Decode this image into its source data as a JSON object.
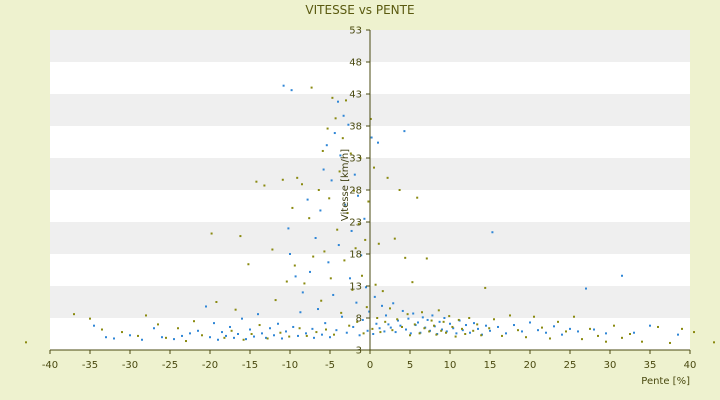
{
  "chart_data": {
    "type": "scatter",
    "title": "VITESSE vs PENTE",
    "xlabel": "Pente [%]",
    "ylabel": "Vitesse [km/h]",
    "xlim": [
      -40,
      40
    ],
    "ylim": [
      3,
      53
    ],
    "x_ticks": [
      -40,
      -35,
      -30,
      -25,
      -20,
      -15,
      -10,
      -5,
      0,
      5,
      10,
      15,
      20,
      25,
      30,
      35,
      40
    ],
    "y_ticks": [
      3,
      8,
      13,
      18,
      23,
      28,
      33,
      38,
      43,
      48,
      53
    ],
    "grid": "horizontal alternating bands",
    "colors": {
      "background": "#eef2cf",
      "plot_area": "#ffffff",
      "band": "#efefef",
      "series_blue": "#2f86d6",
      "series_olive": "#8a8a10",
      "text": "#4a4a10"
    },
    "series": [
      {
        "color_name": "blue",
        "points": [
          [
            -34.5,
            6.8
          ],
          [
            -33.0,
            5.0
          ],
          [
            -32.0,
            4.8
          ],
          [
            -30.0,
            5.3
          ],
          [
            -28.5,
            4.6
          ],
          [
            -27.0,
            6.4
          ],
          [
            -26.0,
            5.0
          ],
          [
            -24.5,
            4.7
          ],
          [
            -23.5,
            5.2
          ],
          [
            -22.5,
            5.6
          ],
          [
            -21.5,
            6.0
          ],
          [
            -20.5,
            9.8
          ],
          [
            -20.0,
            5.0
          ],
          [
            -19.5,
            7.2
          ],
          [
            -19.0,
            4.6
          ],
          [
            -18.5,
            5.8
          ],
          [
            -18.0,
            5.2
          ],
          [
            -17.5,
            6.6
          ],
          [
            -17.0,
            4.9
          ],
          [
            -16.5,
            5.5
          ],
          [
            -16.0,
            7.9
          ],
          [
            -15.5,
            4.7
          ],
          [
            -15.0,
            6.2
          ],
          [
            -14.5,
            5.1
          ],
          [
            -14.0,
            8.6
          ],
          [
            -13.5,
            5.6
          ],
          [
            -13.0,
            4.9
          ],
          [
            -12.5,
            6.4
          ],
          [
            -12.0,
            5.3
          ],
          [
            -11.5,
            7.1
          ],
          [
            -11.0,
            4.8
          ],
          [
            -10.8,
            44.3
          ],
          [
            -10.5,
            5.9
          ],
          [
            -10.2,
            22.0
          ],
          [
            -10.0,
            18.0
          ],
          [
            -9.8,
            43.6
          ],
          [
            -9.6,
            6.6
          ],
          [
            -9.3,
            14.5
          ],
          [
            -9.0,
            5.2
          ],
          [
            -8.7,
            8.9
          ],
          [
            -8.4,
            12.0
          ],
          [
            -8.0,
            5.6
          ],
          [
            -7.8,
            26.5
          ],
          [
            -7.5,
            15.2
          ],
          [
            -7.2,
            6.3
          ],
          [
            -7.0,
            4.9
          ],
          [
            -6.8,
            20.5
          ],
          [
            -6.5,
            9.4
          ],
          [
            -6.2,
            24.8
          ],
          [
            -6.0,
            5.4
          ],
          [
            -5.8,
            31.2
          ],
          [
            -5.6,
            7.2
          ],
          [
            -5.4,
            35.0
          ],
          [
            -5.2,
            16.7
          ],
          [
            -5.0,
            5.0
          ],
          [
            -4.8,
            29.5
          ],
          [
            -4.6,
            11.6
          ],
          [
            -4.4,
            36.9
          ],
          [
            -4.2,
            6.1
          ],
          [
            -4.0,
            41.8
          ],
          [
            -3.9,
            19.4
          ],
          [
            -3.7,
            33.4
          ],
          [
            -3.5,
            8.2
          ],
          [
            -3.3,
            39.6
          ],
          [
            -3.1,
            25.7
          ],
          [
            -2.9,
            5.7
          ],
          [
            -2.7,
            38.2
          ],
          [
            -2.5,
            14.2
          ],
          [
            -2.3,
            21.6
          ],
          [
            -2.1,
            6.6
          ],
          [
            -1.9,
            30.4
          ],
          [
            -1.7,
            10.4
          ],
          [
            -1.5,
            27.1
          ],
          [
            -1.3,
            5.3
          ],
          [
            -1.1,
            17.8
          ],
          [
            -0.9,
            7.7
          ],
          [
            -0.7,
            23.5
          ],
          [
            -0.5,
            12.8
          ],
          [
            -0.3,
            6.0
          ],
          [
            -0.1,
            9.0
          ],
          [
            0.2,
            36.2
          ],
          [
            0.4,
            5.5
          ],
          [
            0.6,
            11.3
          ],
          [
            0.8,
            7.1
          ],
          [
            1.0,
            35.4
          ],
          [
            1.2,
            6.4
          ],
          [
            1.5,
            9.9
          ],
          [
            1.8,
            5.9
          ],
          [
            2.0,
            8.4
          ],
          [
            2.3,
            7.0
          ],
          [
            2.6,
            6.5
          ],
          [
            2.9,
            10.3
          ],
          [
            3.2,
            5.8
          ],
          [
            3.5,
            7.6
          ],
          [
            3.8,
            6.8
          ],
          [
            4.1,
            9.1
          ],
          [
            4.3,
            37.2
          ],
          [
            4.5,
            6.2
          ],
          [
            4.8,
            7.9
          ],
          [
            5.1,
            5.6
          ],
          [
            5.4,
            8.7
          ],
          [
            5.7,
            6.9
          ],
          [
            6.0,
            7.3
          ],
          [
            6.3,
            5.7
          ],
          [
            6.6,
            8.1
          ],
          [
            6.9,
            6.5
          ],
          [
            7.2,
            7.7
          ],
          [
            7.5,
            6.0
          ],
          [
            7.8,
            8.4
          ],
          [
            8.1,
            6.7
          ],
          [
            8.4,
            5.5
          ],
          [
            8.7,
            7.4
          ],
          [
            9.0,
            6.2
          ],
          [
            9.3,
            8.0
          ],
          [
            9.6,
            5.9
          ],
          [
            10.0,
            7.1
          ],
          [
            10.4,
            6.4
          ],
          [
            10.8,
            5.6
          ],
          [
            11.2,
            7.6
          ],
          [
            11.6,
            6.1
          ],
          [
            12.0,
            6.9
          ],
          [
            12.5,
            5.7
          ],
          [
            13.0,
            7.2
          ],
          [
            13.5,
            6.3
          ],
          [
            14.0,
            5.4
          ],
          [
            14.5,
            6.8
          ],
          [
            15.0,
            6.0
          ],
          [
            15.3,
            21.4
          ],
          [
            16.0,
            6.6
          ],
          [
            17.0,
            5.6
          ],
          [
            18.0,
            6.9
          ],
          [
            19.0,
            5.9
          ],
          [
            20.0,
            7.3
          ],
          [
            21.0,
            6.1
          ],
          [
            22.0,
            5.7
          ],
          [
            23.0,
            6.7
          ],
          [
            24.0,
            5.4
          ],
          [
            25.0,
            6.3
          ],
          [
            26.0,
            5.9
          ],
          [
            27.0,
            12.6
          ],
          [
            28.0,
            6.2
          ],
          [
            29.5,
            5.6
          ],
          [
            31.5,
            14.6
          ],
          [
            33.0,
            5.7
          ],
          [
            35.0,
            6.8
          ],
          [
            38.5,
            5.4
          ]
        ]
      },
      {
        "color_name": "olive",
        "points": [
          [
            -43.0,
            4.2
          ],
          [
            -37.0,
            8.6
          ],
          [
            -35.0,
            7.9
          ],
          [
            -33.5,
            6.2
          ],
          [
            -31.0,
            5.8
          ],
          [
            -29.0,
            5.2
          ],
          [
            -28.0,
            8.4
          ],
          [
            -26.5,
            7.0
          ],
          [
            -25.5,
            4.9
          ],
          [
            -24.0,
            6.4
          ],
          [
            -23.0,
            4.4
          ],
          [
            -22.0,
            7.5
          ],
          [
            -21.0,
            5.3
          ],
          [
            -19.8,
            21.2
          ],
          [
            -19.2,
            10.5
          ],
          [
            -18.2,
            4.9
          ],
          [
            -17.3,
            6.0
          ],
          [
            -16.8,
            9.3
          ],
          [
            -16.2,
            20.8
          ],
          [
            -15.8,
            4.6
          ],
          [
            -15.2,
            16.4
          ],
          [
            -14.8,
            5.5
          ],
          [
            -14.2,
            29.3
          ],
          [
            -13.8,
            6.9
          ],
          [
            -13.2,
            28.7
          ],
          [
            -12.8,
            4.8
          ],
          [
            -12.2,
            18.7
          ],
          [
            -11.8,
            10.8
          ],
          [
            -11.2,
            5.7
          ],
          [
            -10.9,
            29.6
          ],
          [
            -10.4,
            13.7
          ],
          [
            -10.1,
            5.1
          ],
          [
            -9.7,
            25.2
          ],
          [
            -9.4,
            16.2
          ],
          [
            -9.1,
            29.9
          ],
          [
            -8.8,
            6.4
          ],
          [
            -8.5,
            28.9
          ],
          [
            -8.2,
            13.4
          ],
          [
            -7.9,
            5.2
          ],
          [
            -7.6,
            23.6
          ],
          [
            -7.3,
            44.0
          ],
          [
            -7.1,
            17.6
          ],
          [
            -6.7,
            5.8
          ],
          [
            -6.4,
            28.0
          ],
          [
            -6.1,
            10.7
          ],
          [
            -5.9,
            34.1
          ],
          [
            -5.7,
            18.4
          ],
          [
            -5.5,
            6.2
          ],
          [
            -5.3,
            37.6
          ],
          [
            -5.1,
            26.7
          ],
          [
            -4.9,
            14.2
          ],
          [
            -4.7,
            42.4
          ],
          [
            -4.5,
            5.4
          ],
          [
            -4.3,
            39.2
          ],
          [
            -4.1,
            21.8
          ],
          [
            -3.8,
            30.9
          ],
          [
            -3.6,
            8.8
          ],
          [
            -3.4,
            36.1
          ],
          [
            -3.2,
            17.0
          ],
          [
            -3.0,
            42.0
          ],
          [
            -2.8,
            24.4
          ],
          [
            -2.6,
            6.8
          ],
          [
            -2.4,
            33.7
          ],
          [
            -2.2,
            12.4
          ],
          [
            -2.0,
            27.9
          ],
          [
            -1.8,
            18.9
          ],
          [
            -1.6,
            7.4
          ],
          [
            -1.4,
            22.7
          ],
          [
            -1.2,
            33.0
          ],
          [
            -1.0,
            14.6
          ],
          [
            -0.8,
            5.6
          ],
          [
            -0.6,
            20.2
          ],
          [
            -0.4,
            9.7
          ],
          [
            -0.2,
            26.2
          ],
          [
            0.1,
            39.1
          ],
          [
            0.3,
            6.3
          ],
          [
            0.5,
            31.5
          ],
          [
            0.7,
            13.2
          ],
          [
            0.9,
            8.0
          ],
          [
            1.1,
            19.6
          ],
          [
            1.3,
            5.8
          ],
          [
            1.6,
            12.2
          ],
          [
            1.9,
            7.4
          ],
          [
            2.2,
            29.9
          ],
          [
            2.5,
            9.5
          ],
          [
            2.8,
            6.1
          ],
          [
            3.1,
            20.4
          ],
          [
            3.4,
            7.8
          ],
          [
            3.7,
            28.0
          ],
          [
            4.0,
            6.6
          ],
          [
            4.4,
            17.4
          ],
          [
            4.7,
            8.6
          ],
          [
            5.0,
            5.3
          ],
          [
            5.3,
            13.6
          ],
          [
            5.6,
            7.0
          ],
          [
            5.9,
            26.8
          ],
          [
            6.2,
            5.6
          ],
          [
            6.5,
            8.9
          ],
          [
            6.8,
            6.4
          ],
          [
            7.1,
            17.3
          ],
          [
            7.4,
            5.9
          ],
          [
            7.7,
            7.6
          ],
          [
            8.0,
            6.8
          ],
          [
            8.3,
            5.4
          ],
          [
            8.6,
            9.2
          ],
          [
            8.9,
            6.0
          ],
          [
            9.2,
            7.4
          ],
          [
            9.5,
            5.7
          ],
          [
            9.9,
            8.3
          ],
          [
            10.3,
            6.6
          ],
          [
            10.7,
            5.1
          ],
          [
            11.1,
            7.7
          ],
          [
            11.5,
            6.3
          ],
          [
            11.9,
            5.5
          ],
          [
            12.4,
            8.0
          ],
          [
            12.9,
            6.0
          ],
          [
            13.4,
            7.0
          ],
          [
            13.9,
            5.3
          ],
          [
            14.4,
            12.7
          ],
          [
            14.9,
            6.4
          ],
          [
            15.5,
            7.8
          ],
          [
            16.5,
            5.2
          ],
          [
            17.5,
            8.4
          ],
          [
            18.5,
            6.1
          ],
          [
            19.5,
            5.0
          ],
          [
            20.5,
            8.2
          ],
          [
            21.5,
            6.5
          ],
          [
            22.5,
            4.8
          ],
          [
            23.5,
            7.4
          ],
          [
            24.5,
            5.9
          ],
          [
            25.5,
            8.2
          ],
          [
            26.5,
            4.7
          ],
          [
            27.5,
            6.3
          ],
          [
            28.5,
            5.2
          ],
          [
            29.5,
            4.3
          ],
          [
            30.5,
            6.8
          ],
          [
            31.5,
            4.9
          ],
          [
            32.5,
            5.5
          ],
          [
            34.0,
            4.3
          ],
          [
            36.0,
            6.6
          ],
          [
            37.5,
            4.1
          ],
          [
            39.0,
            6.3
          ],
          [
            40.5,
            5.8
          ],
          [
            43.0,
            4.2
          ]
        ]
      }
    ]
  }
}
